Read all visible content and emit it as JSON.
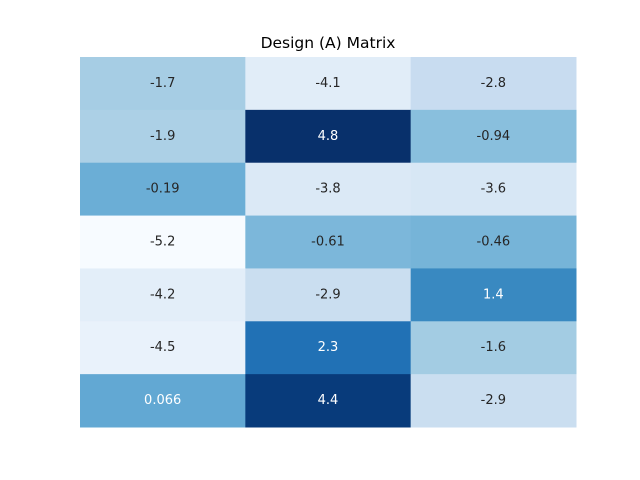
{
  "chart_data": {
    "type": "heatmap",
    "title": "Design (A) Matrix",
    "xlabel": "",
    "ylabel": "",
    "rows": 7,
    "cols": 3,
    "colormap": "Blues",
    "vmin": -5.2,
    "vmax": 4.8,
    "values": [
      [
        -1.7,
        -4.1,
        -2.8
      ],
      [
        -1.9,
        4.8,
        -0.94
      ],
      [
        -0.19,
        -3.8,
        -3.6
      ],
      [
        -5.2,
        -0.61,
        -0.46
      ],
      [
        -4.2,
        -2.9,
        1.4
      ],
      [
        -4.5,
        2.3,
        -1.6
      ],
      [
        0.066,
        4.4,
        -2.9
      ]
    ],
    "labels": [
      [
        "-1.7",
        "-4.1",
        "-2.8"
      ],
      [
        "-1.9",
        "4.8",
        "-0.94"
      ],
      [
        "-0.19",
        "-3.8",
        "-3.6"
      ],
      [
        "-5.2",
        "-0.61",
        "-0.46"
      ],
      [
        "-4.2",
        "-2.9",
        "1.4"
      ],
      [
        "-4.5",
        "2.3",
        "-1.6"
      ],
      [
        "0.066",
        "4.4",
        "-2.9"
      ]
    ],
    "grid": false,
    "legend": "none",
    "colorbar": false
  }
}
